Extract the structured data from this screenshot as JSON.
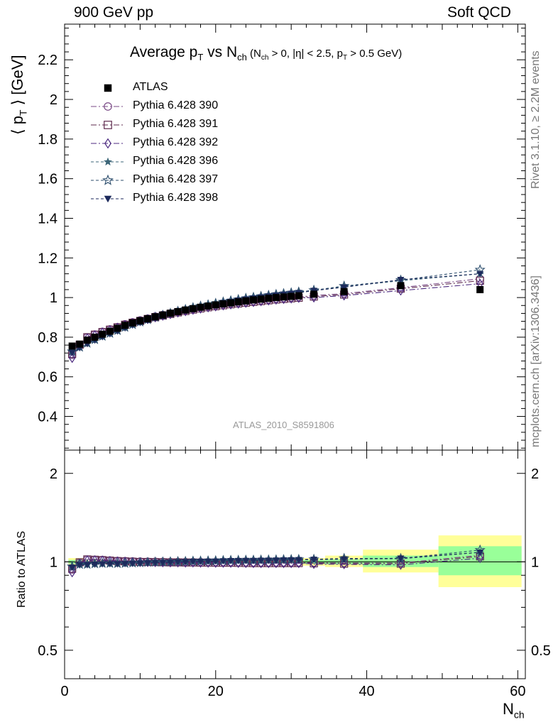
{
  "header": {
    "left": "900 GeV pp",
    "right": "Soft QCD"
  },
  "side": {
    "version": "Rivet 3.1.10, ≥ 2.2M events",
    "source": "mcplots.cern.ch [arXiv:1306.3436]"
  },
  "title": {
    "main": "Average p",
    "main_sub": "T",
    "vs": " vs N",
    "vs_sub": "ch",
    "cond_1": " (N",
    "cond_1_sub": "ch",
    "cond_2": " > 0, |η| < 2.5, p",
    "cond_2_sub": "T",
    "cond_3": " > 0.5 GeV)"
  },
  "analysis_id": "ATLAS_2010_S8591806",
  "colors": {
    "data": "#000000",
    "p390": "#7a4a86",
    "p391": "#5e2a4e",
    "p392": "#4c2a80",
    "p396": "#3c6678",
    "p397": "#2e4f6e",
    "p398": "#1d2a5c",
    "band_inner": "#99ff99",
    "band_outer": "#ffff99"
  },
  "chart_data": {
    "type": "scatter",
    "title": "Average pT vs Nch (Nch > 0, |η| < 2.5, pT > 0.5 GeV)",
    "xlabel": "N_ch",
    "ylabel": "⟨ p_T ⟩ [GeV]",
    "ratio_ylabel": "Ratio to ATLAS",
    "xlim": [
      0,
      61
    ],
    "ylim": [
      0.23,
      2.38
    ],
    "ratio_ylim": [
      0.4,
      2.4
    ],
    "ratio_log": true,
    "x_ticks": [
      "0",
      "20",
      "40",
      "60"
    ],
    "y_ticks": [
      "0.4",
      "0.6",
      "0.8",
      "1",
      "1.2",
      "1.4",
      "1.6",
      "1.8",
      "2",
      "2.2"
    ],
    "ratio_ticks": [
      "0.5",
      "1",
      "2"
    ],
    "legend_position": "top-left",
    "x": [
      1,
      2,
      3,
      4,
      5,
      6,
      7,
      8,
      9,
      10,
      11,
      12,
      13,
      14,
      15,
      16,
      17,
      18,
      19,
      20,
      21,
      22,
      23,
      24,
      25,
      26,
      27,
      28,
      29,
      30,
      31,
      33,
      37,
      44.5,
      55
    ],
    "series": [
      {
        "name": "ATLAS",
        "marker": "square-filled",
        "color_key": "data",
        "values": [
          0.755,
          0.765,
          0.785,
          0.8,
          0.815,
          0.83,
          0.845,
          0.86,
          0.872,
          0.883,
          0.893,
          0.903,
          0.912,
          0.921,
          0.929,
          0.937,
          0.944,
          0.951,
          0.957,
          0.963,
          0.968,
          0.973,
          0.978,
          0.983,
          0.988,
          0.992,
          0.996,
          1.0,
          1.003,
          1.006,
          1.009,
          1.017,
          1.03,
          1.06,
          1.04
        ]
      },
      {
        "name": "Pythia 6.428 390",
        "marker": "circle-open",
        "color_key": "p390",
        "dash": "8,3,2,3",
        "values": [
          0.71,
          0.76,
          0.8,
          0.814,
          0.828,
          0.84,
          0.852,
          0.866,
          0.876,
          0.886,
          0.895,
          0.905,
          0.913,
          0.921,
          0.929,
          0.936,
          0.943,
          0.95,
          0.955,
          0.96,
          0.965,
          0.97,
          0.974,
          0.978,
          0.982,
          0.986,
          0.99,
          0.994,
          0.997,
          1.0,
          1.003,
          1.01,
          1.02,
          1.05,
          1.095
        ]
      },
      {
        "name": "Pythia 6.428 391",
        "marker": "square-open",
        "color_key": "p391",
        "dash": "8,3,2,3",
        "values": [
          0.715,
          0.762,
          0.8,
          0.813,
          0.826,
          0.838,
          0.85,
          0.863,
          0.873,
          0.882,
          0.892,
          0.901,
          0.909,
          0.917,
          0.925,
          0.932,
          0.939,
          0.945,
          0.951,
          0.956,
          0.961,
          0.966,
          0.97,
          0.974,
          0.978,
          0.982,
          0.986,
          0.99,
          0.993,
          0.996,
          0.999,
          1.005,
          1.015,
          1.045,
          1.085
        ]
      },
      {
        "name": "Pythia 6.428 392",
        "marker": "diamond-open",
        "color_key": "p392",
        "dash": "8,3,2,3",
        "values": [
          0.695,
          0.755,
          0.795,
          0.81,
          0.824,
          0.836,
          0.848,
          0.861,
          0.871,
          0.881,
          0.891,
          0.9,
          0.908,
          0.916,
          0.924,
          0.931,
          0.938,
          0.944,
          0.95,
          0.955,
          0.96,
          0.965,
          0.969,
          0.973,
          0.977,
          0.981,
          0.985,
          0.989,
          0.992,
          0.995,
          0.998,
          1.0,
          1.01,
          1.035,
          1.07
        ]
      },
      {
        "name": "Pythia 6.428 396",
        "marker": "star-filled",
        "color_key": "p396",
        "dash": "4,3",
        "values": [
          0.725,
          0.748,
          0.768,
          0.786,
          0.803,
          0.818,
          0.832,
          0.848,
          0.862,
          0.875,
          0.887,
          0.899,
          0.909,
          0.919,
          0.929,
          0.938,
          0.947,
          0.955,
          0.962,
          0.969,
          0.976,
          0.982,
          0.988,
          0.994,
          0.999,
          1.004,
          1.009,
          1.014,
          1.018,
          1.022,
          1.026,
          1.035,
          1.055,
          1.085,
          1.12
        ]
      },
      {
        "name": "Pythia 6.428 397",
        "marker": "star-open",
        "color_key": "p397",
        "dash": "4,3",
        "values": [
          0.728,
          0.75,
          0.77,
          0.788,
          0.805,
          0.82,
          0.834,
          0.85,
          0.864,
          0.877,
          0.889,
          0.901,
          0.911,
          0.921,
          0.931,
          0.94,
          0.949,
          0.957,
          0.964,
          0.971,
          0.978,
          0.984,
          0.99,
          0.996,
          1.001,
          1.006,
          1.011,
          1.016,
          1.02,
          1.024,
          1.028,
          1.037,
          1.058,
          1.088,
          1.14
        ]
      },
      {
        "name": "Pythia 6.428 398",
        "marker": "triangle-down-filled",
        "color_key": "p398",
        "dash": "4,3",
        "values": [
          0.722,
          0.746,
          0.766,
          0.784,
          0.801,
          0.816,
          0.83,
          0.846,
          0.86,
          0.873,
          0.885,
          0.897,
          0.907,
          0.917,
          0.927,
          0.936,
          0.945,
          0.953,
          0.96,
          0.967,
          0.974,
          0.98,
          0.986,
          0.992,
          0.997,
          1.002,
          1.007,
          1.012,
          1.016,
          1.02,
          1.024,
          1.035,
          1.052,
          1.09,
          1.12
        ]
      }
    ],
    "uncertainty_bands": [
      {
        "x": [
          0.5,
          2.5
        ],
        "inner": [
          0.985,
          1.015
        ],
        "outer": [
          0.97,
          1.03
        ]
      },
      {
        "x": [
          2.5,
          31.5
        ],
        "inner": [
          0.995,
          1.005
        ],
        "outer": [
          0.99,
          1.01
        ]
      },
      {
        "x": [
          31.5,
          34.5
        ],
        "inner": [
          0.985,
          1.015
        ],
        "outer": [
          0.97,
          1.03
        ]
      },
      {
        "x": [
          34.5,
          39.5
        ],
        "inner": [
          0.98,
          1.02
        ],
        "outer": [
          0.96,
          1.05
        ]
      },
      {
        "x": [
          39.5,
          49.5
        ],
        "inner": [
          0.96,
          1.05
        ],
        "outer": [
          0.92,
          1.1
        ]
      },
      {
        "x": [
          49.5,
          60.5
        ],
        "inner": [
          0.9,
          1.13
        ],
        "outer": [
          0.82,
          1.23
        ]
      }
    ]
  }
}
